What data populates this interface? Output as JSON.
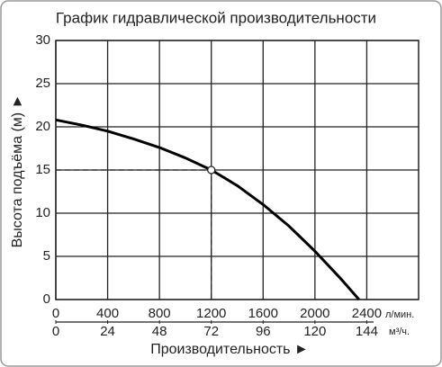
{
  "chart_data": {
    "type": "line",
    "title": "График гидравлической производительности",
    "x_label": "Производительность ►",
    "y_label": "Высота подъёма (м) ►",
    "x_unit": "л/мин.",
    "x2_unit": "м³/ч.",
    "x": [
      0,
      200,
      400,
      600,
      800,
      1000,
      1200,
      1400,
      1600,
      1800,
      2000,
      2200,
      2340
    ],
    "values": [
      20.8,
      20.2,
      19.5,
      18.6,
      17.6,
      16.4,
      15,
      13.2,
      11,
      8.5,
      5.6,
      2.4,
      0
    ],
    "color": "#000000",
    "xlim": [
      0,
      2800
    ],
    "xticks": [
      0,
      400,
      800,
      1200,
      1600,
      2000,
      2400
    ],
    "x2lim": [
      0,
      168
    ],
    "x2ticks": [
      0,
      24,
      48,
      72,
      96,
      120,
      144
    ],
    "ylim": [
      0,
      30
    ],
    "yticks": [
      0,
      5,
      10,
      15,
      20,
      25,
      30
    ],
    "highlight": {
      "x": 1200,
      "y": 15
    },
    "grid": true
  }
}
